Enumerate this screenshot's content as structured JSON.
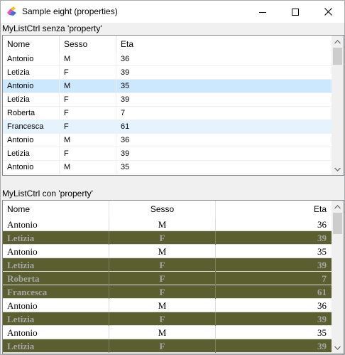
{
  "window": {
    "title": "Sample eight (properties)",
    "icon": "app-icon",
    "buttons": {
      "minimize": "minimize-icon",
      "maximize": "maximize-icon",
      "close": "close-icon"
    }
  },
  "list1": {
    "label": "MyListCtrl senza 'property'",
    "columns": [
      "Nome",
      "Sesso",
      "Eta"
    ],
    "rows": [
      [
        "Antonio",
        "M",
        "36"
      ],
      [
        "Letizia",
        "F",
        "39"
      ],
      [
        "Antonio",
        "M",
        "35"
      ],
      [
        "Letizia",
        "F",
        "39"
      ],
      [
        "Roberta",
        "F",
        "7"
      ],
      [
        "Francesca",
        "F",
        "61"
      ],
      [
        "Antonio",
        "M",
        "36"
      ],
      [
        "Letizia",
        "F",
        "39"
      ],
      [
        "Antonio",
        "M",
        "35"
      ]
    ],
    "selected_row": 2,
    "hover_row": 5,
    "colors": {
      "selected": "#cce8ff",
      "hover": "#e5f3ff"
    }
  },
  "list2": {
    "label": "MyListCtrl con 'property'",
    "columns": [
      "Nome",
      "Sesso",
      "Eta"
    ],
    "rows": [
      [
        "Antonio",
        "M",
        "36"
      ],
      [
        "Letizia",
        "F",
        "39"
      ],
      [
        "Antonio",
        "M",
        "35"
      ],
      [
        "Letizia",
        "F",
        "39"
      ],
      [
        "Roberta",
        "F",
        "7"
      ],
      [
        "Francesca",
        "F",
        "61"
      ],
      [
        "Antonio",
        "M",
        "36"
      ],
      [
        "Letizia",
        "F",
        "39"
      ],
      [
        "Antonio",
        "M",
        "35"
      ],
      [
        "Letizia",
        "F",
        "39"
      ]
    ],
    "colors": {
      "female_row_bg": "#5b5f30",
      "female_row_text": "#a6a6a6"
    }
  }
}
